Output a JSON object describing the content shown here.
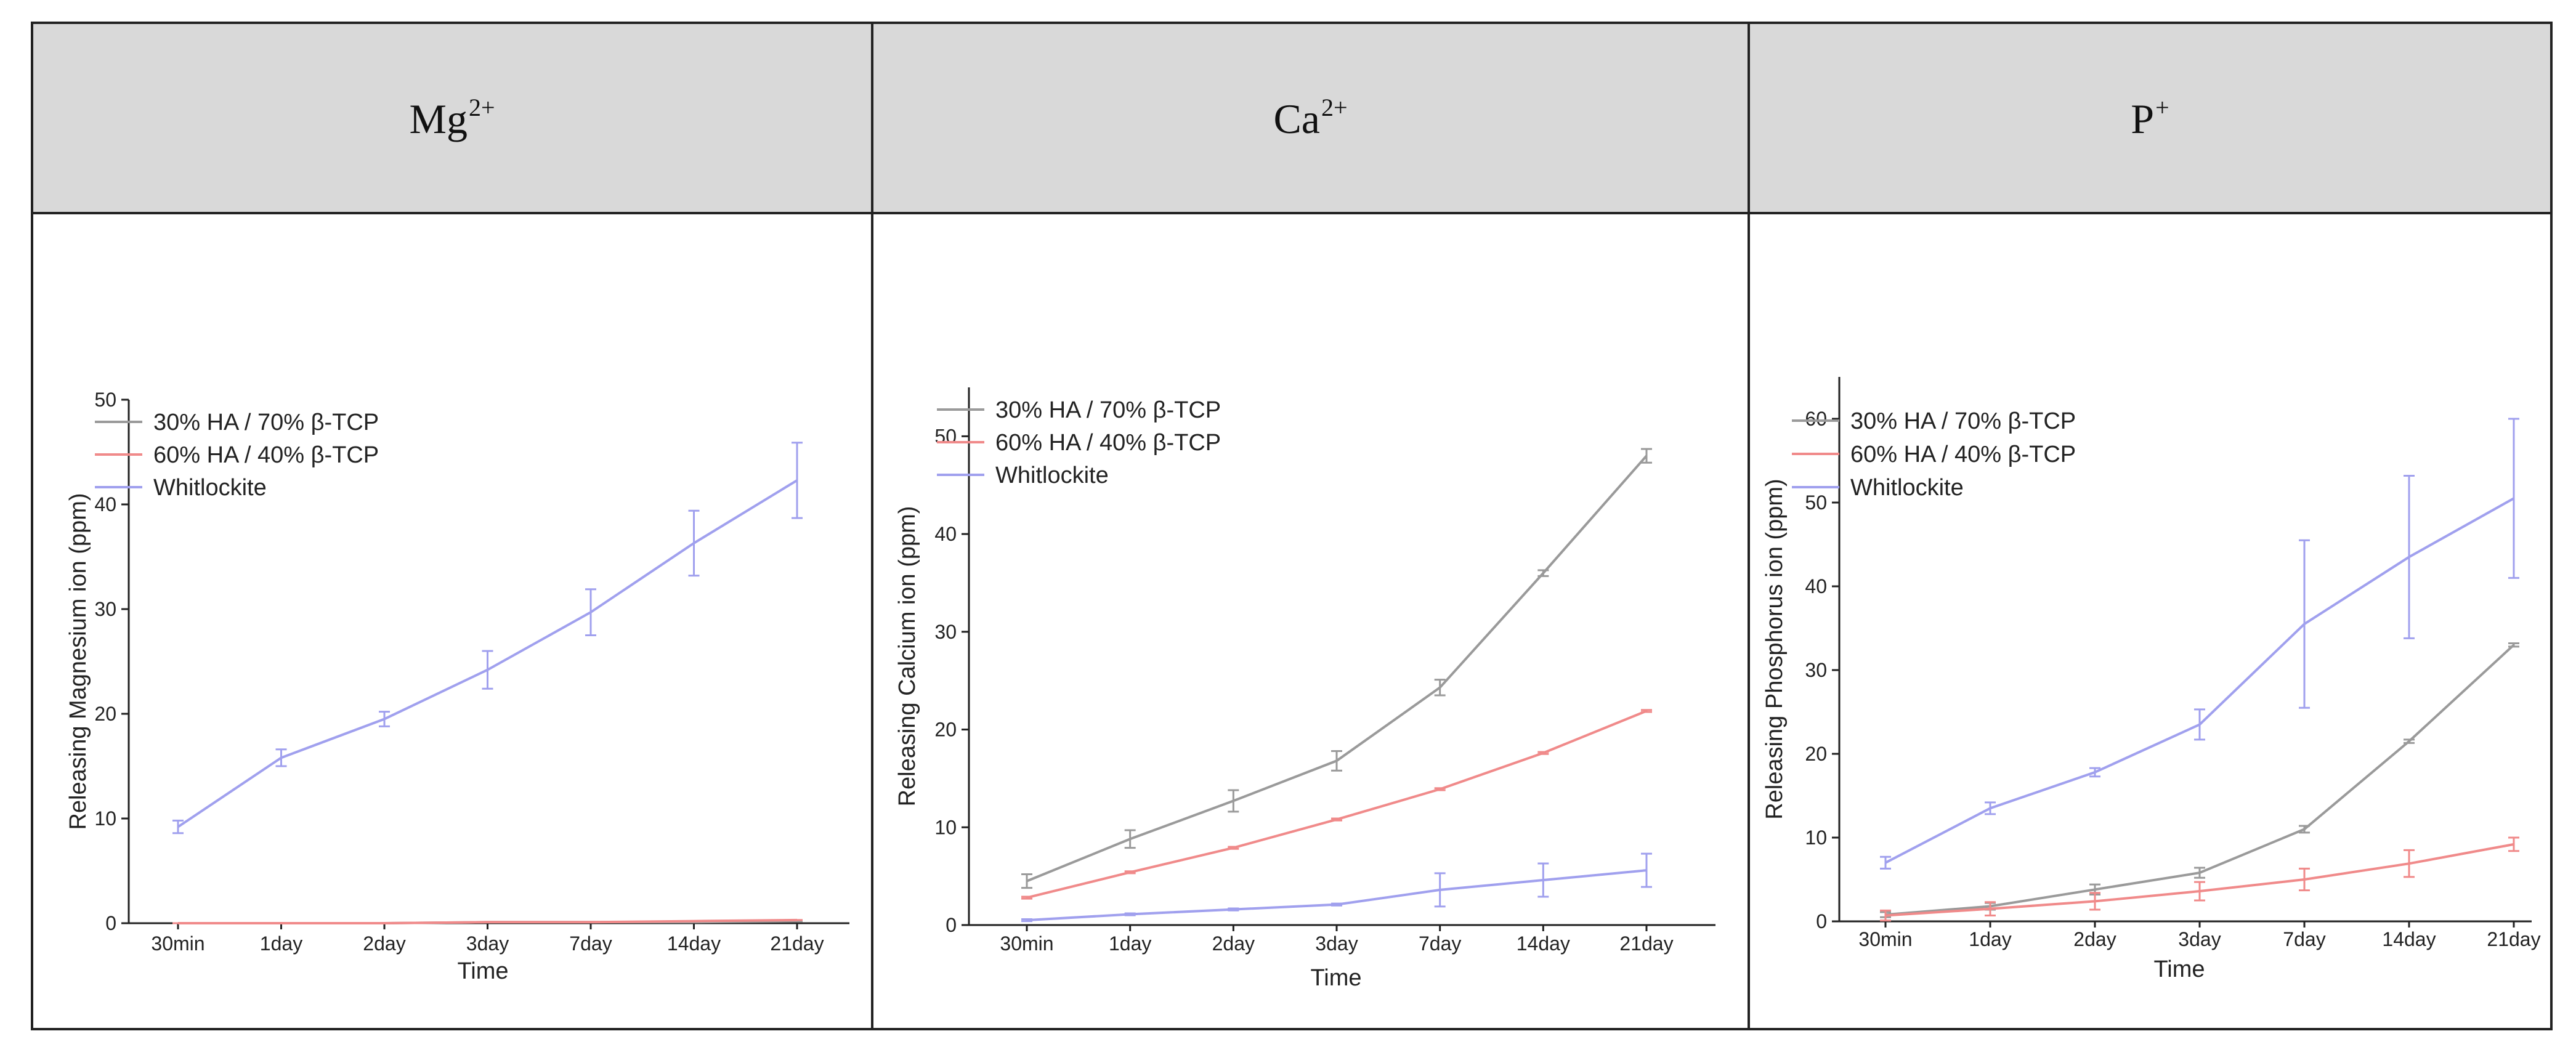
{
  "panels": [
    {
      "ion": "Mg",
      "charge": "2+"
    },
    {
      "ion": "Ca",
      "charge": "2+"
    },
    {
      "ion": "P",
      "charge": "+"
    }
  ],
  "legend": {
    "labels": [
      "30% HA / 70% β-TCP",
      "60% HA / 40% β-TCP",
      "Whitlockite"
    ],
    "colors": [
      "#9a9a9a",
      "#f08a8a",
      "#a0a0ee"
    ]
  },
  "chart_data": [
    {
      "type": "line",
      "title": "Mg2+",
      "xlabel": "Time",
      "ylabel": "Releasing Magnesium ion (ppm)",
      "categories": [
        "30min",
        "1day",
        "2day",
        "3day",
        "7day",
        "14day",
        "21day"
      ],
      "ylim": [
        0,
        50
      ],
      "yticks": [
        0,
        10,
        20,
        30,
        40,
        50
      ],
      "series": [
        {
          "name": "30% HA / 70% β-TCP",
          "values": [
            0,
            0,
            0,
            0.1,
            0.1,
            0.1,
            0.2
          ],
          "errors": [
            0,
            0,
            0,
            0,
            0,
            0,
            0
          ]
        },
        {
          "name": "60% HA / 40% β-TCP",
          "values": [
            0,
            0,
            0,
            0.1,
            0.1,
            0.2,
            0.3
          ],
          "errors": [
            0,
            0,
            0,
            0,
            0,
            0,
            0
          ]
        },
        {
          "name": "Whitlockite",
          "values": [
            9.2,
            15.8,
            19.5,
            24.2,
            29.7,
            36.3,
            42.3
          ],
          "errors": [
            0.6,
            0.8,
            0.7,
            1.8,
            2.2,
            3.1,
            3.6
          ]
        }
      ]
    },
    {
      "type": "line",
      "title": "Ca2+",
      "xlabel": "Time",
      "ylabel": "Releasing Calcium ion (ppm)",
      "categories": [
        "30min",
        "1day",
        "2day",
        "3day",
        "7day",
        "14day",
        "21day"
      ],
      "ylim": [
        0,
        55
      ],
      "yticks": [
        0,
        10,
        20,
        30,
        40,
        50
      ],
      "series": [
        {
          "name": "30% HA / 70% β-TCP",
          "values": [
            4.5,
            8.8,
            12.7,
            16.8,
            24.3,
            36.0,
            48.0
          ],
          "errors": [
            0.7,
            0.9,
            1.1,
            1.0,
            0.8,
            0.3,
            0.7
          ]
        },
        {
          "name": "60% HA / 40% β-TCP",
          "values": [
            2.8,
            5.4,
            7.9,
            10.8,
            13.9,
            17.6,
            21.9
          ],
          "errors": [
            0.1,
            0.1,
            0.1,
            0.1,
            0.1,
            0.1,
            0.1
          ]
        },
        {
          "name": "Whitlockite",
          "values": [
            0.5,
            1.1,
            1.6,
            2.1,
            3.6,
            4.6,
            5.6
          ],
          "errors": [
            0.1,
            0.1,
            0.1,
            0.1,
            1.7,
            1.7,
            1.7
          ]
        }
      ]
    },
    {
      "type": "line",
      "title": "P+",
      "xlabel": "Time",
      "ylabel": "Releasing Phosphorus ion (ppm)",
      "categories": [
        "30min",
        "1day",
        "2day",
        "3day",
        "7day",
        "14day",
        "21day"
      ],
      "ylim": [
        0,
        65
      ],
      "yticks": [
        0,
        10,
        20,
        30,
        40,
        50,
        60
      ],
      "series": [
        {
          "name": "30% HA / 70% β-TCP",
          "values": [
            0.8,
            1.8,
            3.8,
            5.8,
            11.0,
            21.5,
            33.0
          ],
          "errors": [
            0.3,
            0.4,
            0.6,
            0.6,
            0.4,
            0.2,
            0.2
          ]
        },
        {
          "name": "60% HA / 40% β-TCP",
          "values": [
            0.7,
            1.5,
            2.4,
            3.6,
            5.0,
            6.9,
            9.2
          ],
          "errors": [
            0.6,
            0.8,
            1.0,
            1.1,
            1.3,
            1.6,
            0.8
          ]
        },
        {
          "name": "Whitlockite",
          "values": [
            7.0,
            13.5,
            17.8,
            23.5,
            35.5,
            43.5,
            50.5
          ],
          "errors": [
            0.7,
            0.7,
            0.5,
            1.8,
            10.0,
            9.7,
            9.5
          ]
        }
      ]
    }
  ]
}
